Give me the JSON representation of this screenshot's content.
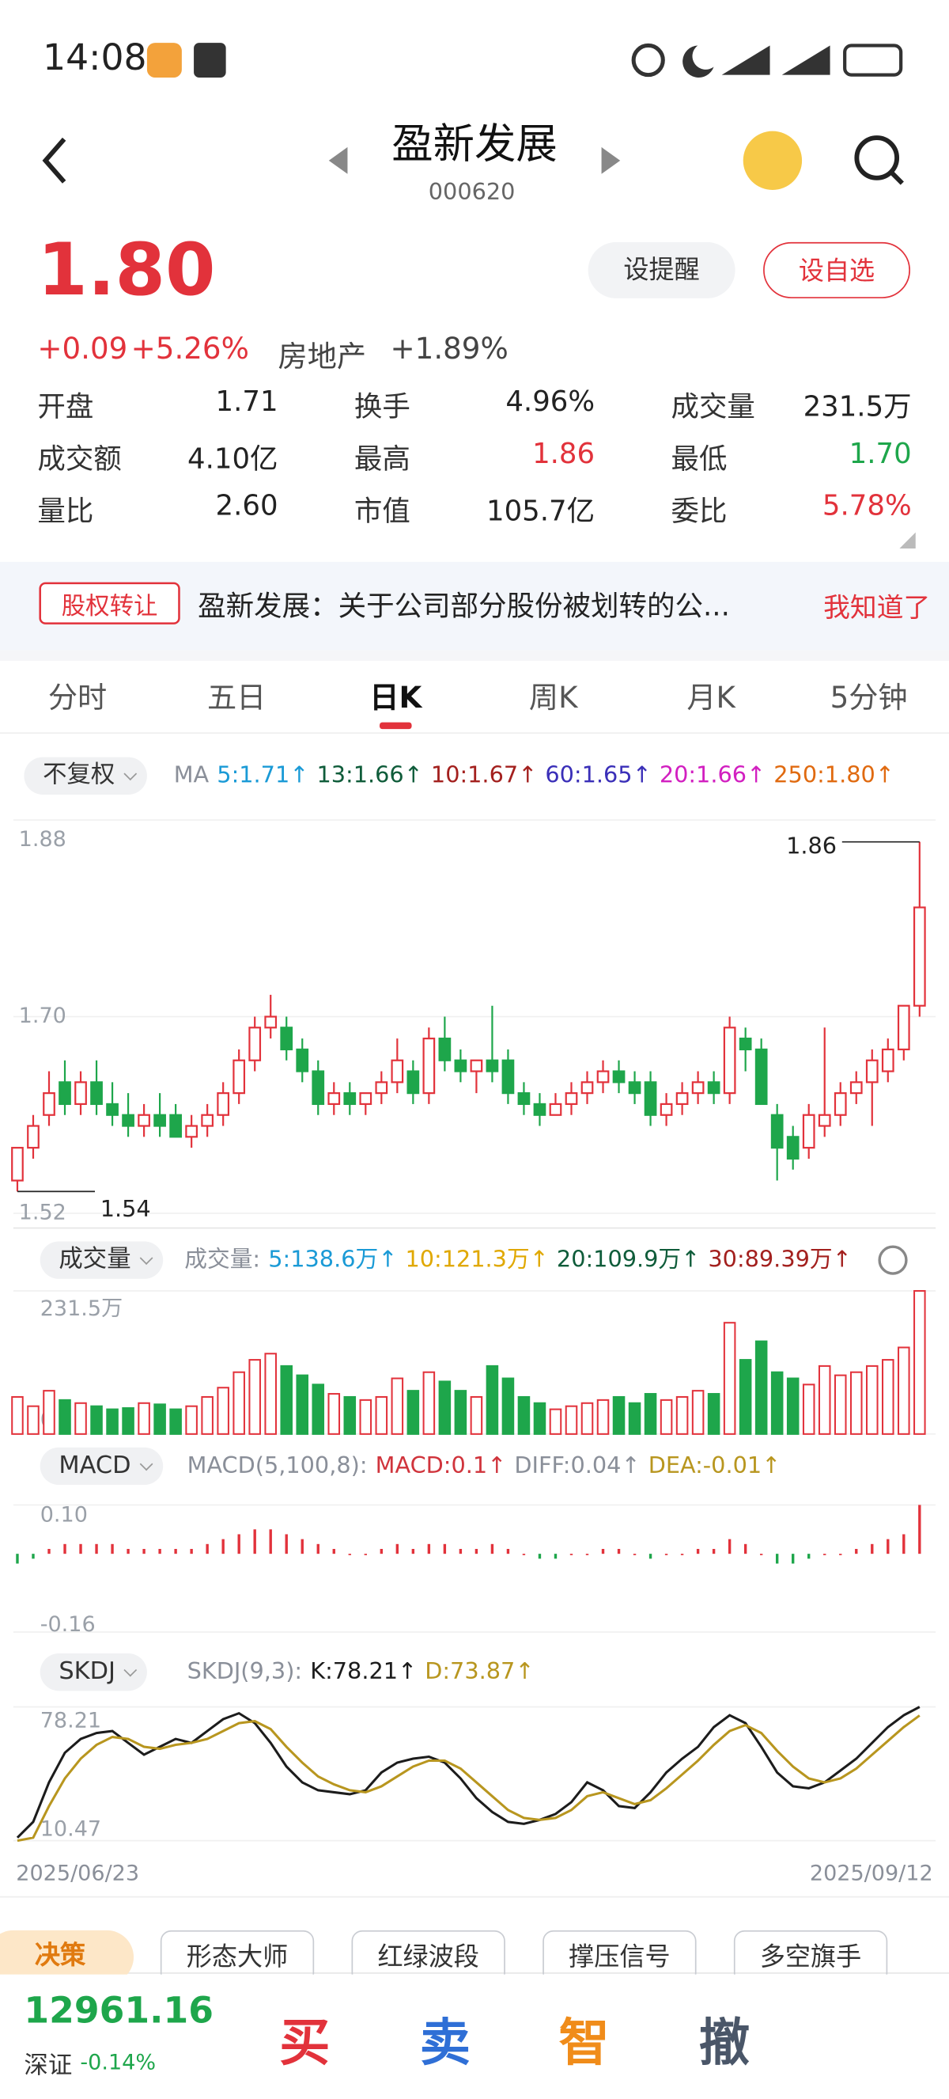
{
  "status_bar": {
    "time": "14:08"
  },
  "header": {
    "title": "盈新发展",
    "code": "000620"
  },
  "quote": {
    "price": "1.80",
    "change": "+0.09",
    "change_pct": "+5.26%",
    "sector": "房地产",
    "sector_pct": "+1.89%",
    "buttons": [
      "设提醒",
      "设自选"
    ]
  },
  "stats": [
    [
      {
        "label": "开盘",
        "value": "1.71"
      },
      {
        "label": "换手",
        "value": "4.96%"
      },
      {
        "label": "成交量",
        "value": "231.5万"
      }
    ],
    [
      {
        "label": "成交额",
        "value": "4.10亿"
      },
      {
        "label": "最高",
        "value": "1.86"
      },
      {
        "label": "最低",
        "value": "1.70"
      }
    ],
    [
      {
        "label": "量比",
        "value": "2.60"
      },
      {
        "label": "市值",
        "value": "105.7亿"
      },
      {
        "label": "委比",
        "value": "5.78%"
      }
    ]
  ],
  "notice": {
    "tag": "股权转让",
    "text": "盈新发展：关于公司部分股份被划转的公...",
    "action": "我知道了"
  },
  "tabs": [
    "分时",
    "五日",
    "日K",
    "周K",
    "月K",
    "5分钟"
  ],
  "price_chart": {
    "type": "candlestick",
    "selector": "不复权",
    "ma_label": "MA",
    "ma": [
      {
        "text": "5:1.71↑",
        "color": "#1a9ad6"
      },
      {
        "text": "13:1.66↑",
        "color": "#0f5c3a"
      },
      {
        "text": "10:1.67↑",
        "color": "#a3201e"
      },
      {
        "text": "60:1.65↑",
        "color": "#3a2fb8"
      },
      {
        "text": "20:1.66↑",
        "color": "#d21fc0"
      },
      {
        "text": "250:1.80↑",
        "color": "#e06a10"
      }
    ],
    "ylim": [
      1.52,
      1.88
    ],
    "yticks": [
      {
        "value": 1.88,
        "label": "1.88"
      },
      {
        "value": 1.7,
        "label": "1.70"
      },
      {
        "value": 1.52,
        "label": "1.52"
      }
    ],
    "up_color": "#e2323b",
    "down_color": "#1ea64b",
    "annotations": [
      "1.86",
      "1.54"
    ],
    "candles": [
      [
        1.55,
        1.58,
        1.54,
        1.58
      ],
      [
        1.58,
        1.61,
        1.57,
        1.6
      ],
      [
        1.61,
        1.65,
        1.6,
        1.63
      ],
      [
        1.64,
        1.66,
        1.61,
        1.62
      ],
      [
        1.62,
        1.65,
        1.61,
        1.64
      ],
      [
        1.64,
        1.66,
        1.61,
        1.62
      ],
      [
        1.62,
        1.64,
        1.6,
        1.61
      ],
      [
        1.61,
        1.63,
        1.59,
        1.6
      ],
      [
        1.6,
        1.62,
        1.59,
        1.61
      ],
      [
        1.61,
        1.63,
        1.59,
        1.6
      ],
      [
        1.61,
        1.62,
        1.59,
        1.59
      ],
      [
        1.59,
        1.61,
        1.58,
        1.6
      ],
      [
        1.6,
        1.62,
        1.59,
        1.61
      ],
      [
        1.61,
        1.64,
        1.6,
        1.63
      ],
      [
        1.63,
        1.67,
        1.62,
        1.66
      ],
      [
        1.66,
        1.7,
        1.65,
        1.69
      ],
      [
        1.69,
        1.72,
        1.68,
        1.7
      ],
      [
        1.69,
        1.7,
        1.66,
        1.67
      ],
      [
        1.67,
        1.68,
        1.64,
        1.65
      ],
      [
        1.65,
        1.66,
        1.61,
        1.62
      ],
      [
        1.62,
        1.64,
        1.61,
        1.63
      ],
      [
        1.63,
        1.64,
        1.61,
        1.62
      ],
      [
        1.62,
        1.63,
        1.61,
        1.63
      ],
      [
        1.63,
        1.65,
        1.62,
        1.64
      ],
      [
        1.64,
        1.68,
        1.63,
        1.66
      ],
      [
        1.65,
        1.66,
        1.62,
        1.63
      ],
      [
        1.63,
        1.69,
        1.62,
        1.68
      ],
      [
        1.68,
        1.7,
        1.65,
        1.66
      ],
      [
        1.66,
        1.67,
        1.64,
        1.65
      ],
      [
        1.65,
        1.66,
        1.63,
        1.66
      ],
      [
        1.66,
        1.71,
        1.64,
        1.65
      ],
      [
        1.66,
        1.67,
        1.62,
        1.63
      ],
      [
        1.63,
        1.64,
        1.61,
        1.62
      ],
      [
        1.62,
        1.63,
        1.6,
        1.61
      ],
      [
        1.61,
        1.63,
        1.61,
        1.62
      ],
      [
        1.62,
        1.64,
        1.61,
        1.63
      ],
      [
        1.63,
        1.65,
        1.62,
        1.64
      ],
      [
        1.64,
        1.66,
        1.63,
        1.65
      ],
      [
        1.65,
        1.66,
        1.63,
        1.64
      ],
      [
        1.64,
        1.65,
        1.62,
        1.63
      ],
      [
        1.64,
        1.65,
        1.6,
        1.61
      ],
      [
        1.61,
        1.63,
        1.6,
        1.62
      ],
      [
        1.62,
        1.64,
        1.61,
        1.63
      ],
      [
        1.63,
        1.65,
        1.62,
        1.64
      ],
      [
        1.64,
        1.65,
        1.62,
        1.63
      ],
      [
        1.63,
        1.7,
        1.62,
        1.69
      ],
      [
        1.68,
        1.69,
        1.65,
        1.67
      ],
      [
        1.67,
        1.68,
        1.62,
        1.62
      ],
      [
        1.61,
        1.62,
        1.55,
        1.58
      ],
      [
        1.59,
        1.6,
        1.56,
        1.57
      ],
      [
        1.58,
        1.62,
        1.57,
        1.61
      ],
      [
        1.6,
        1.69,
        1.59,
        1.61
      ],
      [
        1.61,
        1.64,
        1.6,
        1.63
      ],
      [
        1.63,
        1.65,
        1.62,
        1.64
      ],
      [
        1.64,
        1.67,
        1.6,
        1.66
      ],
      [
        1.65,
        1.68,
        1.64,
        1.67
      ],
      [
        1.67,
        1.71,
        1.66,
        1.71
      ],
      [
        1.71,
        1.86,
        1.7,
        1.8
      ]
    ]
  },
  "volume_chart": {
    "type": "bar",
    "selector": "成交量",
    "legend_title": "成交量:",
    "ma": [
      {
        "text": "5:138.6万↑",
        "color": "#1a9ad6"
      },
      {
        "text": "10:121.3万↑",
        "color": "#e0a800"
      },
      {
        "text": "20:109.9万↑",
        "color": "#0f5c3a"
      },
      {
        "text": "30:89.39万↑",
        "color": "#a3201e"
      }
    ],
    "ylim": [
      0,
      231.5
    ],
    "yticks": [
      {
        "value": 231.5,
        "label": "231.5万"
      },
      0
    ],
    "values": [
      60,
      45,
      70,
      55,
      50,
      45,
      40,
      42,
      50,
      48,
      40,
      45,
      60,
      75,
      100,
      120,
      130,
      110,
      95,
      80,
      65,
      60,
      55,
      60,
      90,
      70,
      100,
      85,
      70,
      60,
      110,
      90,
      60,
      50,
      40,
      45,
      50,
      55,
      60,
      50,
      65,
      55,
      60,
      70,
      65,
      180,
      120,
      150,
      100,
      90,
      80,
      110,
      95,
      100,
      110,
      120,
      140,
      231.5
    ]
  },
  "macd_chart": {
    "type": "bar",
    "selector": "MACD",
    "params": "MACD(5,100,8):",
    "items": [
      {
        "text": "MACD:0.1↑",
        "color": "#d0343c"
      },
      {
        "text": "DIFF:0.04↑",
        "color": "#8a8f99"
      },
      {
        "text": "DEA:-0.01↑",
        "color": "#b8961f"
      }
    ],
    "ylim": [
      -0.16,
      0.1
    ],
    "yticks": [
      {
        "value": 0.1,
        "label": "0.10"
      },
      -0.16
    ],
    "values": [
      -0.02,
      -0.01,
      0.01,
      0.02,
      0.02,
      0.02,
      0.02,
      0.01,
      0.01,
      0.01,
      0.01,
      0.01,
      0.02,
      0.03,
      0.04,
      0.05,
      0.05,
      0.04,
      0.03,
      0.02,
      0.01,
      0,
      0,
      0.01,
      0.02,
      0.01,
      0.02,
      0.02,
      0.01,
      0.01,
      0.02,
      0.01,
      0,
      -0.01,
      -0.01,
      0,
      0,
      0.01,
      0.01,
      0,
      -0.01,
      0,
      0,
      0.01,
      0.01,
      0.03,
      0.02,
      0,
      -0.02,
      -0.02,
      -0.01,
      0,
      0,
      0.01,
      0.02,
      0.03,
      0.04,
      0.1
    ]
  },
  "skdj_chart": {
    "type": "line",
    "selector": "SKDJ",
    "params": "SKDJ(9,3):",
    "ylim": [
      10.47,
      78.21
    ],
    "yticks": [
      78.21,
      10.47
    ],
    "series": [
      {
        "name": "K:78.21↑",
        "color": "#1c1c1c",
        "values": [
          12,
          20,
          40,
          55,
          62,
          65,
          66,
          60,
          54,
          58,
          62,
          60,
          66,
          72,
          75,
          70,
          60,
          48,
          40,
          36,
          35,
          34,
          36,
          45,
          50,
          52,
          53,
          50,
          42,
          32,
          25,
          20,
          19,
          21,
          24,
          30,
          40,
          36,
          28,
          27,
          35,
          45,
          52,
          58,
          68,
          74,
          70,
          58,
          45,
          38,
          37,
          40,
          46,
          52,
          60,
          68,
          74,
          78.21
        ]
      },
      {
        "name": "D:73.87↑",
        "color": "#b8961f",
        "values": [
          10.47,
          12,
          28,
          42,
          52,
          59,
          63,
          62,
          58,
          57,
          59,
          60,
          62,
          66,
          70,
          71,
          67,
          58,
          50,
          43,
          39,
          36,
          35,
          38,
          43,
          48,
          51,
          51,
          47,
          40,
          33,
          26,
          22,
          21,
          22,
          26,
          33,
          35,
          32,
          29,
          31,
          37,
          44,
          51,
          59,
          66,
          69,
          65,
          56,
          48,
          42,
          40,
          42,
          47,
          54,
          61,
          68,
          73.87
        ]
      }
    ],
    "date_labels": [
      "2025/06/23",
      "2025/09/12"
    ]
  },
  "tools": [
    "决策",
    "形态大师",
    "红绿波段",
    "撑压信号",
    "多空旗手"
  ],
  "bottom_bar": {
    "index_value": "12961.16",
    "index_name": "深证",
    "index_change": "-0.14%",
    "actions": [
      "买",
      "卖",
      "智",
      "撤"
    ]
  }
}
